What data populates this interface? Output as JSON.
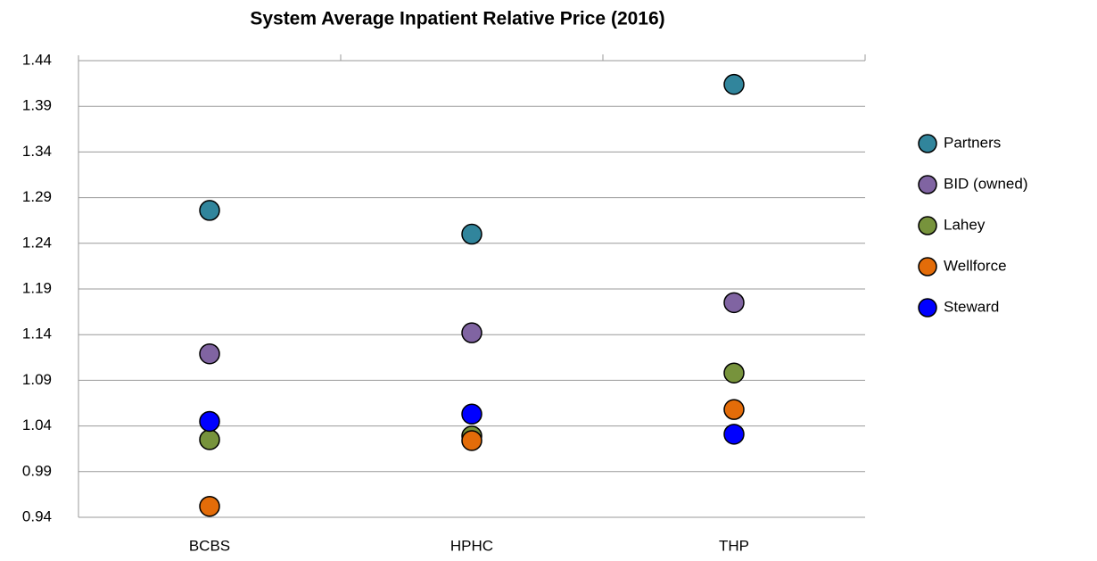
{
  "chart_data": {
    "type": "scatter",
    "title": "System Average Inpatient Relative Price (2016)",
    "categories": [
      "BCBS",
      "HPHC",
      "THP"
    ],
    "series": [
      {
        "name": "Partners",
        "color": "#31859c",
        "values": [
          1.276,
          1.25,
          1.414
        ]
      },
      {
        "name": "BID (owned)",
        "color": "#8064a2",
        "values": [
          1.119,
          1.142,
          1.175
        ]
      },
      {
        "name": "Lahey",
        "color": "#77933c",
        "values": [
          1.025,
          1.029,
          1.098
        ]
      },
      {
        "name": "Wellforce",
        "color": "#e36c09",
        "values": [
          0.952,
          1.024,
          1.058
        ]
      },
      {
        "name": "Steward",
        "color": "#0000ff",
        "values": [
          1.045,
          1.053,
          1.031
        ]
      }
    ],
    "ylim": [
      0.94,
      1.44
    ],
    "yticks": [
      0.94,
      0.99,
      1.04,
      1.09,
      1.14,
      1.19,
      1.24,
      1.29,
      1.34,
      1.39,
      1.44
    ],
    "grid": true,
    "legend": "right"
  }
}
